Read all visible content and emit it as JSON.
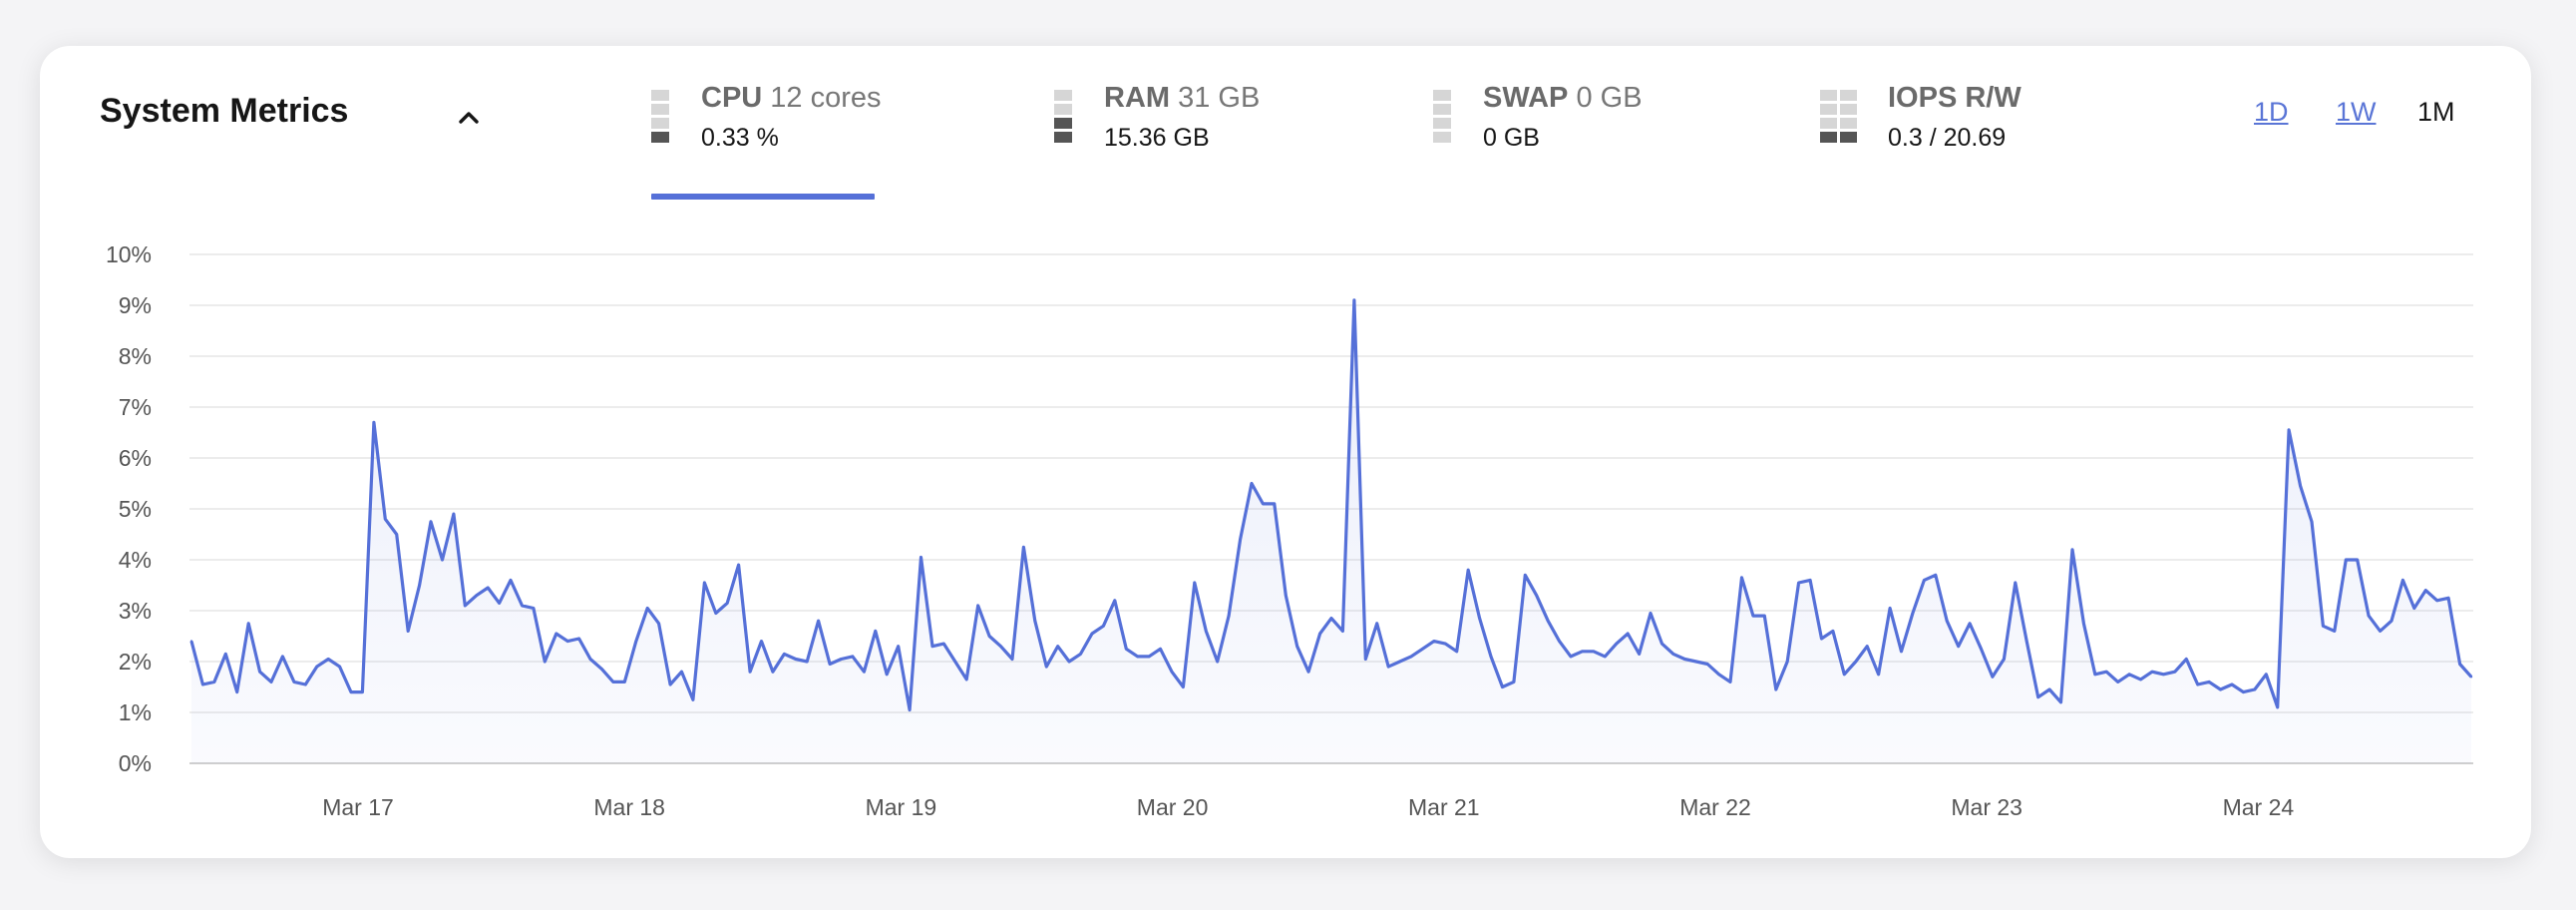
{
  "header": {
    "title": "System Metrics",
    "collapse_icon": "chevron-up-icon"
  },
  "metrics": [
    {
      "name": "CPU",
      "detail": "12 cores",
      "value": "0.33 %",
      "active": true,
      "icon": "cpu-usage-bars-icon"
    },
    {
      "name": "RAM",
      "detail": "31 GB",
      "value": "15.36 GB",
      "active": false,
      "icon": "ram-usage-bars-icon"
    },
    {
      "name": "SWAP",
      "detail": "0 GB",
      "value": "0 GB",
      "active": false,
      "icon": "swap-usage-bars-icon"
    },
    {
      "name": "IOPS R/W",
      "detail": "",
      "value": "0.3 / 20.69",
      "active": false,
      "icon": "iops-usage-bars-icon"
    }
  ],
  "ranges": [
    {
      "label": "1D",
      "active": false
    },
    {
      "label": "1W",
      "active": false
    },
    {
      "label": "1M",
      "active": true
    }
  ],
  "colors": {
    "accent": "#5570d8",
    "line": "#5570d8",
    "grid": "#e6e6e6",
    "card": "#ffffff"
  },
  "chart_data": {
    "type": "area",
    "title": "",
    "xlabel": "",
    "ylabel": "",
    "ylim": [
      0,
      10
    ],
    "y_ticks": [
      "0%",
      "1%",
      "2%",
      "3%",
      "4%",
      "5%",
      "6%",
      "7%",
      "8%",
      "9%",
      "10%"
    ],
    "x_ticks": [
      "Mar 17",
      "Mar 18",
      "Mar 19",
      "Mar 20",
      "Mar 21",
      "Mar 22",
      "Mar 23",
      "Mar 24"
    ],
    "grid": true,
    "legend": "none",
    "series": [
      {
        "values": [
          2.4,
          1.55,
          1.6,
          2.15,
          1.4,
          2.75,
          1.8,
          1.6,
          2.1,
          1.6,
          1.55,
          1.9,
          2.05,
          1.9,
          1.4,
          1.4,
          6.7,
          4.8,
          4.5,
          2.6,
          3.5,
          4.75,
          4.0,
          4.9,
          3.1,
          3.3,
          3.45,
          3.15,
          3.6,
          3.1,
          3.05,
          2.0,
          2.55,
          2.4,
          2.45,
          2.05,
          1.85,
          1.6,
          1.6,
          2.4,
          3.05,
          2.75,
          1.55,
          1.8,
          1.25,
          3.55,
          2.95,
          3.15,
          3.9,
          1.8,
          2.4,
          1.8,
          2.15,
          2.05,
          2.0,
          2.8,
          1.95,
          2.05,
          2.1,
          1.8,
          2.6,
          1.75,
          2.3,
          1.05,
          4.05,
          2.3,
          2.35,
          2.0,
          1.65,
          3.1,
          2.5,
          2.3,
          2.05,
          4.25,
          2.8,
          1.9,
          2.3,
          2.0,
          2.15,
          2.55,
          2.7,
          3.2,
          2.25,
          2.1,
          2.1,
          2.25,
          1.8,
          1.5,
          3.55,
          2.6,
          2.0,
          2.9,
          4.4,
          5.5,
          5.1,
          5.1,
          3.3,
          2.3,
          1.8,
          2.55,
          2.85,
          2.6,
          9.1,
          2.05,
          2.75,
          1.9,
          2.0,
          2.1,
          2.25,
          2.4,
          2.35,
          2.2,
          3.8,
          2.85,
          2.1,
          1.5,
          1.6,
          3.7,
          3.3,
          2.8,
          2.4,
          2.1,
          2.2,
          2.2,
          2.1,
          2.35,
          2.55,
          2.15,
          2.95,
          2.35,
          2.15,
          2.05,
          2.0,
          1.95,
          1.75,
          1.6,
          3.65,
          2.9,
          2.9,
          1.45,
          2.0,
          3.55,
          3.6,
          2.45,
          2.6,
          1.75,
          2.0,
          2.3,
          1.75,
          3.05,
          2.2,
          2.95,
          3.6,
          3.7,
          2.8,
          2.3,
          2.75,
          2.25,
          1.7,
          2.05,
          3.55,
          2.4,
          1.3,
          1.45,
          1.2,
          4.2,
          2.75,
          1.75,
          1.8,
          1.6,
          1.75,
          1.65,
          1.8,
          1.75,
          1.8,
          2.05,
          1.55,
          1.6,
          1.45,
          1.55,
          1.4,
          1.45,
          1.75,
          1.1,
          6.55,
          5.45,
          4.75,
          2.7,
          2.6,
          4.0,
          4.0,
          2.9,
          2.6,
          2.8,
          3.6,
          3.05,
          3.4,
          3.2,
          3.25,
          1.95,
          1.7
        ]
      }
    ]
  }
}
